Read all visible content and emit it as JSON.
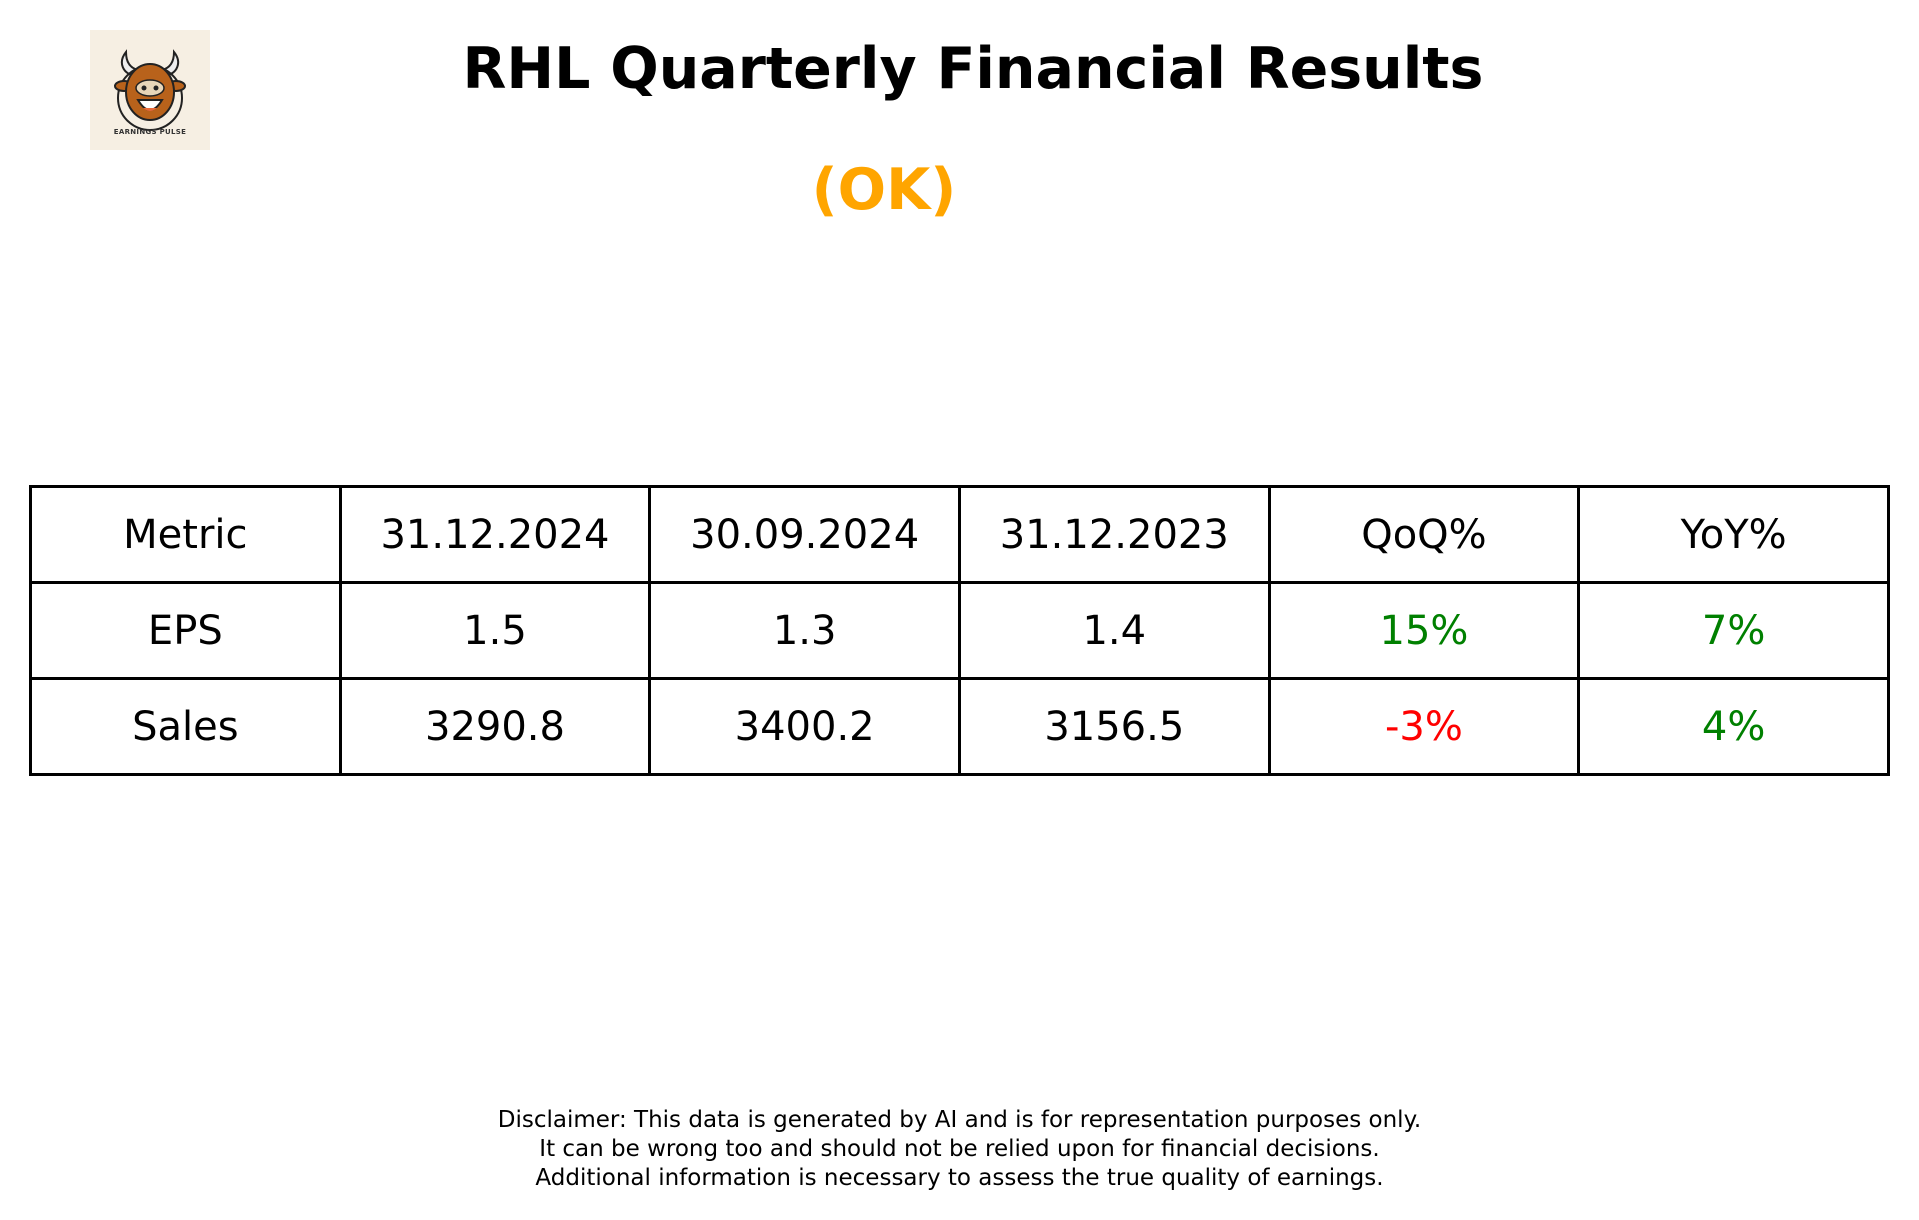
{
  "logo": {
    "text": "EARNINGS PULSE"
  },
  "header": {
    "title": "RHL Quarterly Financial Results",
    "status": "(OK)",
    "status_color": "#ffa500"
  },
  "table": {
    "columns": [
      "Metric",
      "31.12.2024",
      "30.09.2024",
      "31.12.2023",
      "QoQ%",
      "YoY%"
    ],
    "rows": [
      {
        "cells": [
          "EPS",
          "1.5",
          "1.3",
          "1.4",
          "15%",
          "7%"
        ],
        "colors": [
          "#000000",
          "#000000",
          "#000000",
          "#000000",
          "#008000",
          "#008000"
        ]
      },
      {
        "cells": [
          "Sales",
          "3290.8",
          "3400.2",
          "3156.5",
          "-3%",
          "4%"
        ],
        "colors": [
          "#000000",
          "#000000",
          "#000000",
          "#000000",
          "#ff0000",
          "#008000"
        ]
      }
    ]
  },
  "disclaimer": {
    "lines": [
      "Disclaimer: This data is generated by AI and is for representation purposes only.",
      "It can be wrong too and should not be relied upon for financial decisions.",
      "Additional information is necessary to assess the true quality of earnings."
    ]
  }
}
